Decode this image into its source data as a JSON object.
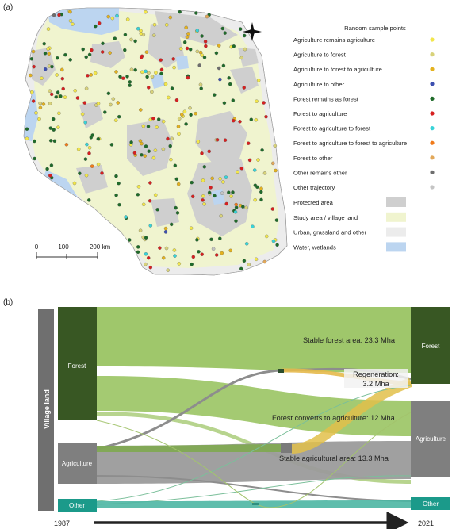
{
  "panel_a": {
    "label": "(a)",
    "legend_title": "Random sample points",
    "legend_points": [
      {
        "label": "Agriculture remains agriculture",
        "color": "#f2e64b"
      },
      {
        "label": "Agriculture to forest",
        "color": "#d8d27a"
      },
      {
        "label": "Agriculture to forest to agriculture",
        "color": "#e4b21f"
      },
      {
        "label": "Agriculture to other",
        "color": "#3d4fb0"
      },
      {
        "label": "Forest remains as forest",
        "color": "#1f6b2a"
      },
      {
        "label": "Forest to agriculture",
        "color": "#d62020"
      },
      {
        "label": "Forest to agriculture to forest",
        "color": "#39d3d8"
      },
      {
        "label": "Forest to agriculture to forest to agriculture",
        "color": "#f07a1a"
      },
      {
        "label": "Forest to other",
        "color": "#e2a85a"
      },
      {
        "label": "Other remains other",
        "color": "#6e6e6e"
      },
      {
        "label": "Other trajectory",
        "color": "#c4c4c4"
      }
    ],
    "legend_areas": [
      {
        "label": "Protected area",
        "color": "#cfcfcf"
      },
      {
        "label": "Study area / village land",
        "color": "#f0f4cf"
      },
      {
        "label": "Urban, grassland and other",
        "color": "#ececec"
      },
      {
        "label": "Water, wetlands",
        "color": "#bcd5f0"
      }
    ],
    "scale_labels": [
      "0",
      "100",
      "200 km"
    ],
    "point_counts": {
      "yellow": 150,
      "green": 120,
      "red": 55,
      "cyan": 16,
      "other": 14
    }
  },
  "panel_b": {
    "label": "(b)",
    "village_label": "Village land",
    "left_nodes": [
      "Forest",
      "Agriculture",
      "Other"
    ],
    "right_nodes": [
      "Forest",
      "Agriculture",
      "Other"
    ],
    "annotations": {
      "stable_forest": "Stable forest area: 23.3 Mha",
      "regeneration_1": "Regeneration:",
      "regeneration_2": "3.2 Mha",
      "forest_to_ag": "Forest converts to agriculture: 12 Mha",
      "stable_ag": "Stable agricultural area: 13.3 Mha"
    },
    "year_start": "1987",
    "year_end": "2021"
  }
}
